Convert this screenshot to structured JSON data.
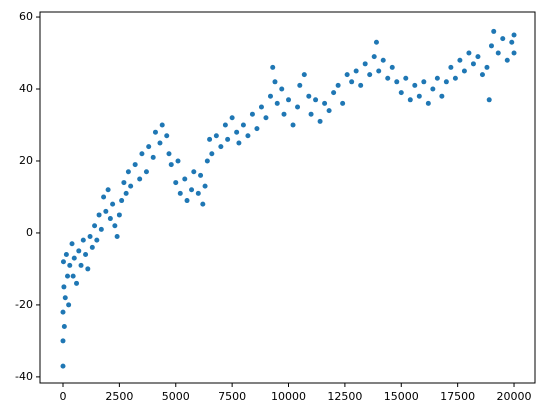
{
  "chart_data": {
    "type": "scatter",
    "color": "#1f77b4",
    "x": [
      0,
      0,
      0,
      20,
      40,
      60,
      100,
      150,
      200,
      250,
      300,
      400,
      450,
      500,
      600,
      700,
      800,
      900,
      1000,
      1100,
      1200,
      1300,
      1400,
      1500,
      1600,
      1700,
      1800,
      1900,
      2000,
      2100,
      2200,
      2300,
      2400,
      2500,
      2600,
      2700,
      2800,
      2900,
      3000,
      3200,
      3400,
      3500,
      3700,
      3800,
      4000,
      4100,
      4300,
      4400,
      4600,
      4700,
      4800,
      5000,
      5100,
      5200,
      5400,
      5500,
      5700,
      5800,
      6000,
      6100,
      6200,
      6300,
      6400,
      6500,
      6600,
      6800,
      7000,
      7200,
      7300,
      7500,
      7700,
      7800,
      8000,
      8200,
      8400,
      8600,
      8800,
      9000,
      9200,
      9300,
      9400,
      9500,
      9700,
      9800,
      10000,
      10200,
      10400,
      10500,
      10700,
      10900,
      11000,
      11200,
      11400,
      11600,
      11800,
      12000,
      12200,
      12400,
      12600,
      12800,
      13000,
      13200,
      13400,
      13600,
      13800,
      13900,
      14000,
      14200,
      14400,
      14600,
      14800,
      15000,
      15200,
      15400,
      15600,
      15800,
      16000,
      16200,
      16400,
      16600,
      16800,
      17000,
      17200,
      17400,
      17600,
      17800,
      18000,
      18200,
      18400,
      18600,
      18800,
      18900,
      19000,
      19100,
      19300,
      19500,
      19700,
      19900,
      20000,
      20000
    ],
    "y": [
      -22,
      -30,
      -37,
      -8,
      -15,
      -26,
      -18,
      -6,
      -12,
      -20,
      -9,
      -3,
      -12,
      -7,
      -14,
      -5,
      -9,
      -2,
      -6,
      -10,
      -1,
      -4,
      2,
      -2,
      5,
      1,
      10,
      6,
      12,
      4,
      8,
      2,
      -1,
      5,
      9,
      14,
      11,
      17,
      13,
      19,
      15,
      22,
      17,
      24,
      21,
      28,
      25,
      30,
      27,
      22,
      19,
      14,
      20,
      11,
      15,
      9,
      12,
      17,
      11,
      16,
      8,
      13,
      20,
      26,
      22,
      27,
      24,
      30,
      26,
      32,
      28,
      25,
      30,
      27,
      33,
      29,
      35,
      32,
      38,
      46,
      42,
      36,
      40,
      33,
      37,
      30,
      35,
      41,
      44,
      38,
      33,
      37,
      31,
      36,
      34,
      39,
      41,
      36,
      44,
      42,
      45,
      41,
      47,
      44,
      49,
      53,
      45,
      48,
      43,
      46,
      42,
      39,
      43,
      37,
      41,
      38,
      42,
      36,
      40,
      43,
      38,
      42,
      46,
      43,
      48,
      45,
      50,
      47,
      49,
      44,
      46,
      37,
      52,
      56,
      50,
      54,
      48,
      53,
      50,
      55
    ],
    "xlim": [
      -1020,
      20930
    ],
    "ylim": [
      -41.7,
      61.4
    ],
    "xticks": [
      0,
      2500,
      5000,
      7500,
      10000,
      12500,
      15000,
      17500,
      20000
    ],
    "yticks": [
      -40,
      -20,
      0,
      20,
      40,
      60
    ]
  }
}
